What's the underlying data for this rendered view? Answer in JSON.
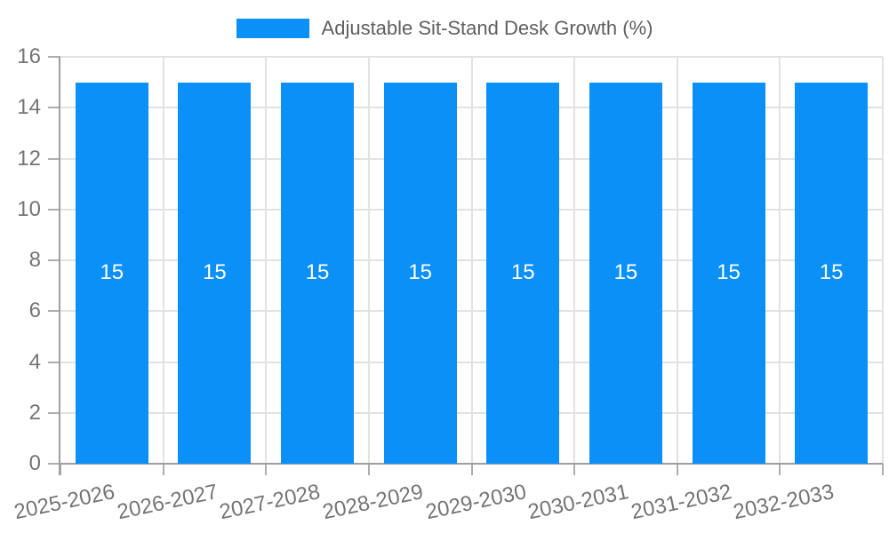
{
  "chart_data": {
    "type": "bar",
    "legend": {
      "label": "Adjustable Sit-Stand Desk Growth (%)",
      "position": "top"
    },
    "categories": [
      "2025-2026",
      "2026-2027",
      "2027-2028",
      "2028-2029",
      "2029-2030",
      "2030-2031",
      "2031-2032",
      "2032-2033"
    ],
    "series": [
      {
        "name": "Adjustable Sit-Stand Desk Growth (%)",
        "values": [
          15,
          15,
          15,
          15,
          15,
          15,
          15,
          15
        ]
      }
    ],
    "xlabel": "",
    "ylabel": "",
    "ylim": [
      0,
      16
    ],
    "yticks": [
      0,
      2,
      4,
      6,
      8,
      10,
      12,
      14,
      16
    ],
    "grid": true,
    "colors": {
      "bar": "#0B90F8",
      "bar_label": "#FFFFFF",
      "grid": "#E2E2E2",
      "axis": "#9E9E9E",
      "tick": "#ADADAD",
      "tick_label": "#757575",
      "legend_label": "#5F5F5F",
      "background": "#FFFFFF"
    }
  }
}
